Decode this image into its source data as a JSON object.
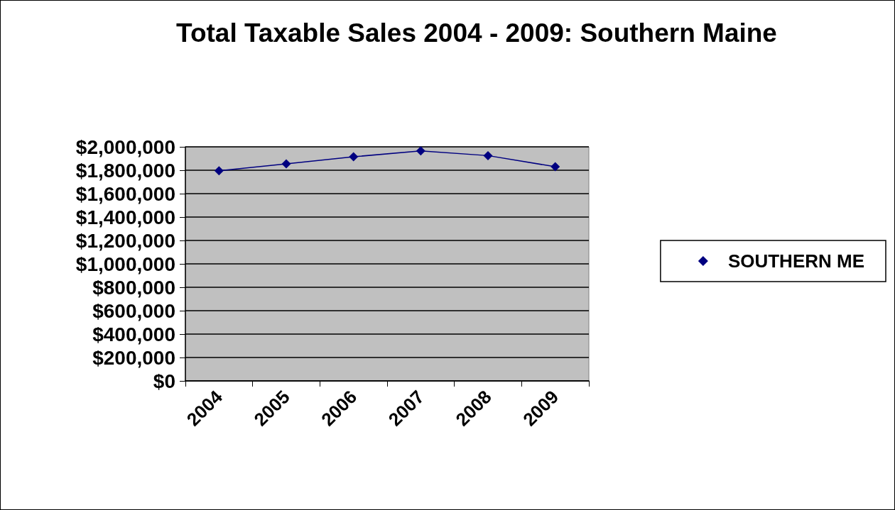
{
  "chart_data": {
    "type": "line",
    "title": "Total Taxable Sales 2004 - 2009: Southern Maine",
    "categories": [
      "2004",
      "2005",
      "2006",
      "2007",
      "2008",
      "2009"
    ],
    "series": [
      {
        "name": "SOUTHERN ME",
        "color": "#000080",
        "values": [
          1795000,
          1855000,
          1915000,
          1965000,
          1925000,
          1830000
        ]
      }
    ],
    "ylim": [
      0,
      2000000
    ],
    "yticks": [
      {
        "value": 0,
        "label": "$0"
      },
      {
        "value": 200000,
        "label": "$200,000"
      },
      {
        "value": 400000,
        "label": "$400,000"
      },
      {
        "value": 600000,
        "label": "$600,000"
      },
      {
        "value": 800000,
        "label": "$800,000"
      },
      {
        "value": 1000000,
        "label": "$1,000,000"
      },
      {
        "value": 1200000,
        "label": "$1,200,000"
      },
      {
        "value": 1400000,
        "label": "$1,400,000"
      },
      {
        "value": 1600000,
        "label": "$1,600,000"
      },
      {
        "value": 1800000,
        "label": "$1,800,000"
      },
      {
        "value": 2000000,
        "label": "$2,000,000"
      }
    ],
    "grid": "y",
    "legend": "right",
    "marker": "diamond",
    "line_style": "solid"
  }
}
